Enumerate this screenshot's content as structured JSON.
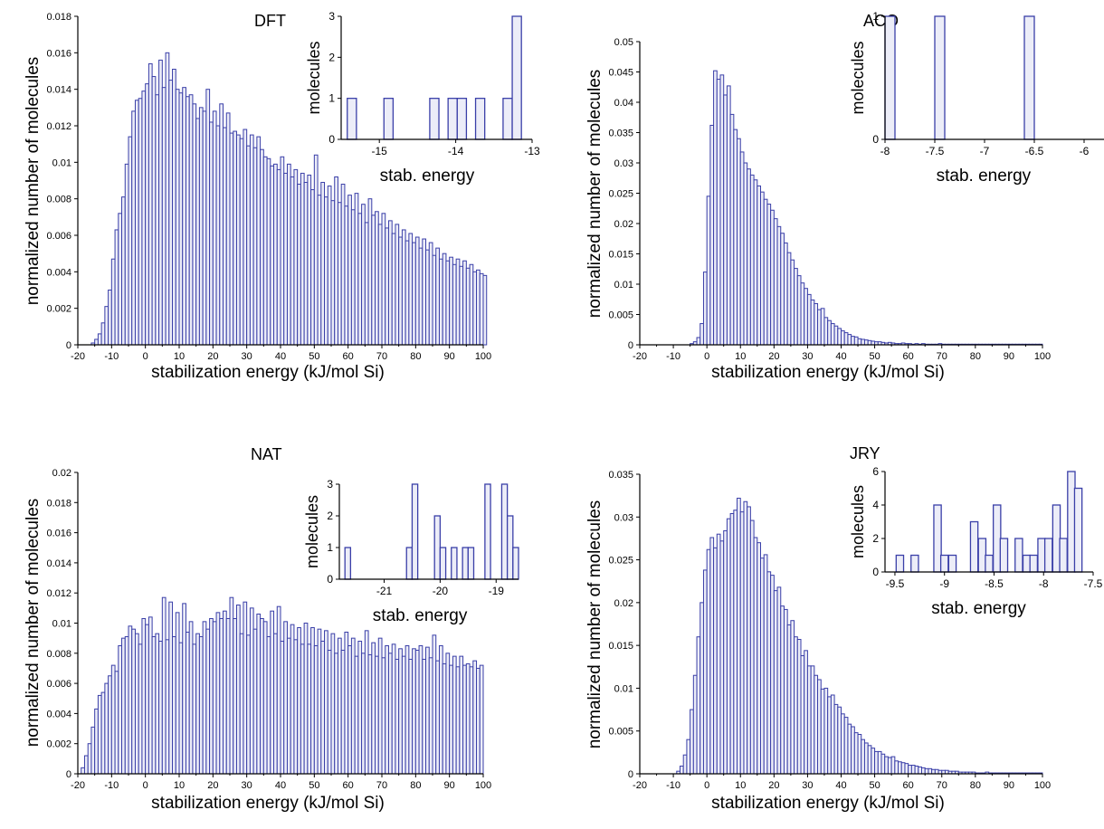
{
  "chart_data": [
    {
      "type": "bar",
      "title": "DFT",
      "xlabel": "stabilization energy (kJ/mol Si)",
      "ylabel": "normalized number of molecules",
      "xlim": [
        -20,
        100
      ],
      "ylim": [
        0,
        0.018
      ],
      "x_ticks": [
        "-20",
        "-10",
        "0",
        "10",
        "20",
        "30",
        "40",
        "50",
        "60",
        "70",
        "80",
        "90",
        "100"
      ],
      "y_ticks": [
        "0",
        "0.002",
        "0.004",
        "0.006",
        "0.008",
        "0.01",
        "0.012",
        "0.014",
        "0.016",
        "0.018"
      ],
      "bin_width": 1,
      "x_start": -16,
      "values": [
        0.0001,
        0.0003,
        0.0006,
        0.0012,
        0.0021,
        0.003,
        0.0047,
        0.0063,
        0.0072,
        0.0081,
        0.0099,
        0.0114,
        0.0128,
        0.0134,
        0.0135,
        0.0139,
        0.0143,
        0.0154,
        0.0147,
        0.0137,
        0.0156,
        0.0141,
        0.016,
        0.0145,
        0.0151,
        0.014,
        0.0138,
        0.0141,
        0.0136,
        0.0137,
        0.0132,
        0.0124,
        0.013,
        0.0128,
        0.014,
        0.0122,
        0.0128,
        0.012,
        0.0132,
        0.0119,
        0.0127,
        0.0116,
        0.0117,
        0.0115,
        0.0113,
        0.0118,
        0.0109,
        0.0115,
        0.0108,
        0.0114,
        0.0107,
        0.0103,
        0.0102,
        0.0098,
        0.0099,
        0.0096,
        0.0103,
        0.0094,
        0.0099,
        0.0092,
        0.0096,
        0.0088,
        0.0094,
        0.0089,
        0.0093,
        0.0085,
        0.0104,
        0.0082,
        0.0089,
        0.0081,
        0.0087,
        0.0079,
        0.0092,
        0.0078,
        0.0088,
        0.0076,
        0.0082,
        0.0074,
        0.0083,
        0.0072,
        0.0077,
        0.0067,
        0.008,
        0.0071,
        0.0073,
        0.0066,
        0.0072,
        0.0064,
        0.0068,
        0.0061,
        0.0066,
        0.0059,
        0.0063,
        0.0057,
        0.0061,
        0.0056,
        0.0059,
        0.0053,
        0.0058,
        0.0052,
        0.0056,
        0.0049,
        0.0053,
        0.0047,
        0.005,
        0.0046,
        0.0048,
        0.0044,
        0.0047,
        0.0043,
        0.0046,
        0.0042,
        0.0044,
        0.004,
        0.0041,
        0.0039,
        0.0038
      ],
      "inset": {
        "xlabel": "stab. energy",
        "ylabel": "molecules",
        "xlim": [
          -15.5,
          -13
        ],
        "ylim": [
          0,
          3
        ],
        "x_ticks": [
          "-15",
          "-14",
          "-13"
        ],
        "x_tick_values": [
          -15,
          -14,
          -13
        ],
        "y_ticks": [
          "0",
          "1",
          "2",
          "3"
        ],
        "y_tick_values": [
          0,
          1,
          2,
          3
        ],
        "bin_width": 0.12,
        "bins": [
          [
            -15.36,
            1
          ],
          [
            -14.88,
            1
          ],
          [
            -14.28,
            1
          ],
          [
            -14.04,
            1
          ],
          [
            -13.92,
            1
          ],
          [
            -13.68,
            1
          ],
          [
            -13.32,
            1
          ],
          [
            -13.2,
            3
          ]
        ]
      }
    },
    {
      "type": "bar",
      "title": "ACO",
      "xlabel": "stabilization energy (kJ/mol Si)",
      "ylabel": "normalized number of molecules",
      "xlim": [
        -20,
        100
      ],
      "ylim": [
        0,
        0.05
      ],
      "x_ticks": [
        "-20",
        "-10",
        "0",
        "10",
        "20",
        "30",
        "40",
        "50",
        "60",
        "70",
        "80",
        "90",
        "100"
      ],
      "y_ticks": [
        "0",
        "0.005",
        "0.01",
        "0.015",
        "0.02",
        "0.025",
        "0.03",
        "0.035",
        "0.04",
        "0.045",
        "0.05"
      ],
      "bin_width": 1,
      "x_start": -5,
      "values": [
        0.0002,
        0.0005,
        0.0012,
        0.0035,
        0.012,
        0.0245,
        0.0362,
        0.0452,
        0.0438,
        0.0445,
        0.0412,
        0.0427,
        0.038,
        0.0355,
        0.034,
        0.0318,
        0.03,
        0.029,
        0.028,
        0.0272,
        0.0262,
        0.0252,
        0.024,
        0.0232,
        0.0222,
        0.0208,
        0.0195,
        0.0184,
        0.0168,
        0.0152,
        0.014,
        0.0126,
        0.0114,
        0.0102,
        0.0093,
        0.0083,
        0.0074,
        0.0068,
        0.0058,
        0.006,
        0.0045,
        0.004,
        0.0035,
        0.0031,
        0.0027,
        0.0023,
        0.002,
        0.0017,
        0.0014,
        0.0013,
        0.001,
        0.0009,
        0.0008,
        0.0007,
        0.0006,
        0.0005,
        0.0005,
        0.0004,
        0.0003,
        0.0004,
        0.0003,
        0.0002,
        0.0002,
        0.0003,
        0.0002,
        0.0002,
        0.0001,
        0.0002,
        0.0001,
        0.0002,
        0.0001,
        0.0001,
        0.0001,
        0.0001,
        0.0002,
        0.0001,
        0.0001,
        0.0001,
        0.0001,
        0.0001,
        0.0001,
        0.0001,
        0.0001,
        0.0001,
        0.0001,
        0.0001,
        0.0001,
        0.0001,
        0.0001,
        0.0001,
        0.0001,
        0.0001,
        0.0001,
        0.0001,
        0.0001,
        0.0001,
        0.0001,
        0.0001,
        0.0001,
        0.0001,
        0.0001,
        0.0001,
        0.0001,
        0.0001,
        0.0001
      ],
      "inset": {
        "xlabel": "stab. energy",
        "ylabel": "molecules",
        "xlim": [
          -8,
          -5.8
        ],
        "ylim": [
          0,
          1
        ],
        "x_ticks": [
          "-8",
          "-7.5",
          "-7",
          "-6.5",
          "-6"
        ],
        "x_tick_values": [
          -8,
          -7.5,
          -7,
          -6.5,
          -6
        ],
        "y_ticks": [
          "0",
          "1"
        ],
        "y_tick_values": [
          0,
          1
        ],
        "bin_width": 0.1,
        "bins": [
          [
            -7.95,
            1
          ],
          [
            -7.45,
            1
          ],
          [
            -6.55,
            1
          ]
        ]
      }
    },
    {
      "type": "bar",
      "title": "NAT",
      "xlabel": "stabilization energy (kJ/mol Si)",
      "ylabel": "normalized number of molecules",
      "xlim": [
        -20,
        100
      ],
      "ylim": [
        0,
        0.02
      ],
      "x_ticks": [
        "-20",
        "-10",
        "0",
        "10",
        "20",
        "30",
        "40",
        "50",
        "60",
        "70",
        "80",
        "90",
        "100"
      ],
      "y_ticks": [
        "0",
        "0.002",
        "0.004",
        "0.006",
        "0.008",
        "0.01",
        "0.012",
        "0.014",
        "0.016",
        "0.018",
        "0.02"
      ],
      "bin_width": 1,
      "x_start": -19,
      "values": [
        0.0004,
        0.0012,
        0.002,
        0.0031,
        0.0043,
        0.0052,
        0.0054,
        0.006,
        0.0065,
        0.0072,
        0.0068,
        0.0085,
        0.009,
        0.0091,
        0.0098,
        0.0096,
        0.0093,
        0.0086,
        0.0103,
        0.0099,
        0.0104,
        0.0091,
        0.0093,
        0.0088,
        0.0117,
        0.0089,
        0.0114,
        0.0091,
        0.0107,
        0.0087,
        0.0113,
        0.0094,
        0.0101,
        0.0086,
        0.0093,
        0.0091,
        0.0101,
        0.0096,
        0.0103,
        0.0101,
        0.0107,
        0.0103,
        0.0108,
        0.0103,
        0.0117,
        0.0103,
        0.0112,
        0.0093,
        0.0114,
        0.0092,
        0.011,
        0.0096,
        0.0106,
        0.0103,
        0.0101,
        0.0091,
        0.0108,
        0.0093,
        0.0111,
        0.0088,
        0.0101,
        0.009,
        0.0099,
        0.0089,
        0.0097,
        0.0086,
        0.01,
        0.0086,
        0.0097,
        0.0085,
        0.0096,
        0.0088,
        0.0095,
        0.0082,
        0.0093,
        0.008,
        0.009,
        0.0082,
        0.0094,
        0.0085,
        0.009,
        0.0078,
        0.0088,
        0.008,
        0.0095,
        0.0079,
        0.0087,
        0.0078,
        0.009,
        0.0077,
        0.0085,
        0.008,
        0.0086,
        0.0076,
        0.0083,
        0.0078,
        0.0085,
        0.0076,
        0.0083,
        0.0082,
        0.0085,
        0.0076,
        0.0084,
        0.0077,
        0.0092,
        0.0075,
        0.0085,
        0.0073,
        0.008,
        0.0072,
        0.0078,
        0.0071,
        0.0078,
        0.0072,
        0.0073,
        0.0071,
        0.0075,
        0.007,
        0.0072
      ],
      "inset": {
        "xlabel": "stab. energy",
        "ylabel": "molecules",
        "xlim": [
          -21.8,
          -18.6
        ],
        "ylim": [
          0,
          3
        ],
        "x_ticks": [
          "-21",
          "-20",
          "-19"
        ],
        "x_tick_values": [
          -21,
          -20,
          -19
        ],
        "y_ticks": [
          "0",
          "1",
          "2",
          "3"
        ],
        "y_tick_values": [
          0,
          1,
          2,
          3
        ],
        "bin_width": 0.1,
        "bins": [
          [
            -21.65,
            1
          ],
          [
            -20.55,
            1
          ],
          [
            -20.45,
            3
          ],
          [
            -20.05,
            2
          ],
          [
            -19.95,
            1
          ],
          [
            -19.75,
            1
          ],
          [
            -19.55,
            1
          ],
          [
            -19.45,
            1
          ],
          [
            -19.15,
            3
          ],
          [
            -18.85,
            3
          ],
          [
            -18.75,
            2
          ],
          [
            -18.65,
            1
          ]
        ]
      }
    },
    {
      "type": "bar",
      "title": "JRY",
      "xlabel": "stabilization energy (kJ/mol Si)",
      "ylabel": "normalized number of molecules",
      "xlim": [
        -20,
        100
      ],
      "ylim": [
        0,
        0.035
      ],
      "x_ticks": [
        "-20",
        "-10",
        "0",
        "10",
        "20",
        "30",
        "40",
        "50",
        "60",
        "70",
        "80",
        "90",
        "100"
      ],
      "y_ticks": [
        "0",
        "0.005",
        "0.01",
        "0.015",
        "0.02",
        "0.025",
        "0.03",
        "0.035"
      ],
      "bin_width": 1,
      "x_start": -9,
      "values": [
        0.0003,
        0.0009,
        0.0022,
        0.004,
        0.0075,
        0.0115,
        0.016,
        0.02,
        0.0238,
        0.0262,
        0.0276,
        0.0264,
        0.028,
        0.0272,
        0.0284,
        0.0298,
        0.0304,
        0.0308,
        0.0322,
        0.0306,
        0.0318,
        0.0312,
        0.0296,
        0.0276,
        0.027,
        0.0252,
        0.0256,
        0.0236,
        0.0232,
        0.0214,
        0.0218,
        0.0196,
        0.0192,
        0.0174,
        0.0179,
        0.016,
        0.0157,
        0.0138,
        0.0144,
        0.0126,
        0.0126,
        0.0115,
        0.011,
        0.0099,
        0.01,
        0.009,
        0.0092,
        0.0081,
        0.0078,
        0.007,
        0.0066,
        0.0058,
        0.0055,
        0.0048,
        0.0046,
        0.004,
        0.0036,
        0.0033,
        0.003,
        0.0026,
        0.0026,
        0.0023,
        0.002,
        0.0019,
        0.002,
        0.0015,
        0.0014,
        0.0013,
        0.0012,
        0.001,
        0.001,
        0.0009,
        0.0008,
        0.0007,
        0.0006,
        0.0006,
        0.0005,
        0.0005,
        0.0004,
        0.0004,
        0.0004,
        0.0003,
        0.0003,
        0.0003,
        0.0002,
        0.0002,
        0.0002,
        0.0002,
        0.0002,
        0.0001,
        0.0001,
        0.0001,
        0.0002,
        0.0001,
        0.0001,
        0.0001,
        0.0001,
        0.0001,
        0.0001,
        0.0001,
        0.0001,
        0.0001,
        0.0001,
        0.0001,
        0.0001,
        0.0001,
        0.0001,
        0.0001,
        0.0001
      ],
      "inset": {
        "xlabel": "stab. energy",
        "ylabel": "molecules",
        "xlim": [
          -9.6,
          -7.5
        ],
        "ylim": [
          0,
          6
        ],
        "x_ticks": [
          "-9.5",
          "-9",
          "-8.5",
          "-8",
          "-7.5"
        ],
        "x_tick_values": [
          -9.5,
          -9,
          -8.5,
          -8,
          -7.5
        ],
        "y_ticks": [
          "0",
          "2",
          "4",
          "6"
        ],
        "y_tick_values": [
          0,
          2,
          4,
          6
        ],
        "bin_width": 0.075,
        "bins": [
          [
            -9.45,
            1
          ],
          [
            -9.3,
            1
          ],
          [
            -9.07,
            4
          ],
          [
            -9.0,
            1
          ],
          [
            -8.92,
            1
          ],
          [
            -8.7,
            3
          ],
          [
            -8.62,
            2
          ],
          [
            -8.55,
            1
          ],
          [
            -8.47,
            4
          ],
          [
            -8.4,
            2
          ],
          [
            -8.25,
            2
          ],
          [
            -8.17,
            1
          ],
          [
            -8.1,
            1
          ],
          [
            -8.02,
            2
          ],
          [
            -7.95,
            2
          ],
          [
            -7.87,
            4
          ],
          [
            -7.8,
            2
          ],
          [
            -7.72,
            6
          ],
          [
            -7.65,
            5
          ]
        ]
      }
    }
  ]
}
